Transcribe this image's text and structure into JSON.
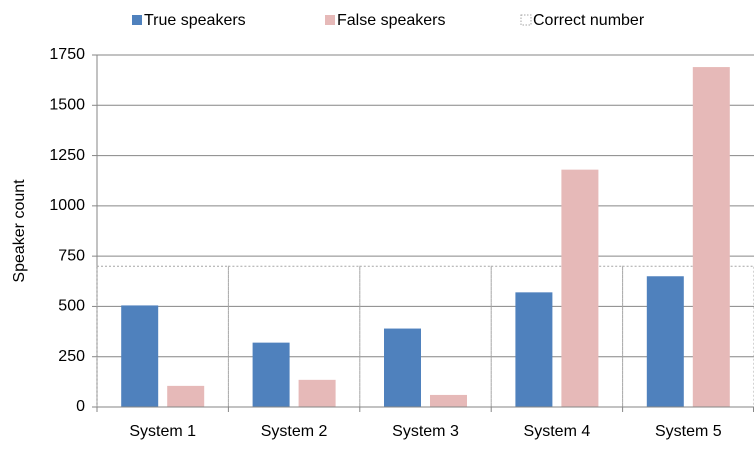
{
  "chart_data": {
    "type": "bar",
    "y_label": "Speaker count",
    "categories": [
      "System 1",
      "System 2",
      "System 3",
      "System 4",
      "System 5"
    ],
    "series": [
      {
        "name": "True speakers",
        "color": "#4f81bd",
        "values": [
          505,
          320,
          390,
          570,
          650
        ]
      },
      {
        "name": "False speakers",
        "color": "#e6b9b8",
        "values": [
          105,
          135,
          60,
          1180,
          1690
        ]
      },
      {
        "name": "Correct number",
        "color": "#a6a6a6",
        "style": "dotted-outline",
        "values": [
          700,
          700,
          700,
          700,
          700
        ]
      }
    ],
    "ylim": [
      0,
      1750
    ],
    "yticks": [
      0,
      250,
      500,
      750,
      1000,
      1250,
      1500,
      1750
    ],
    "grid": true,
    "legend": "top"
  }
}
